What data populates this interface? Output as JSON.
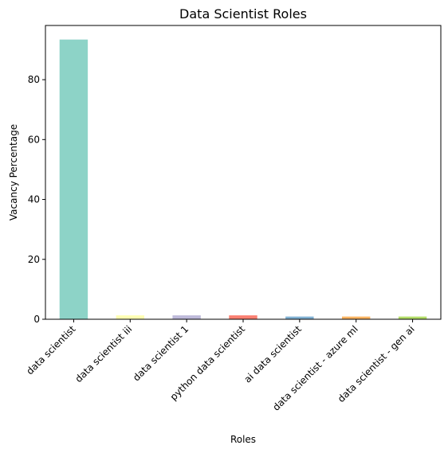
{
  "chart_data": {
    "type": "bar",
    "title": "Data Scientist Roles",
    "xlabel": "Roles",
    "ylabel": "Vacancy Percentage",
    "categories": [
      "data scientist",
      "data scientist iii",
      "data scientist 1",
      "python data scientist",
      "ai data scientist",
      "data scientist - azure ml",
      "data scientist - gen ai"
    ],
    "values": [
      93.4,
      1.3,
      1.3,
      1.3,
      0.9,
      0.9,
      0.9
    ],
    "colors": [
      "#8dd3c7",
      "#ffffb3",
      "#bebada",
      "#fb8072",
      "#80b1d3",
      "#fdb462",
      "#b3de69"
    ],
    "ylim": [
      0,
      98.1
    ],
    "yticks": [
      0,
      20,
      40,
      60,
      80
    ],
    "grid": false,
    "legend": "none"
  }
}
